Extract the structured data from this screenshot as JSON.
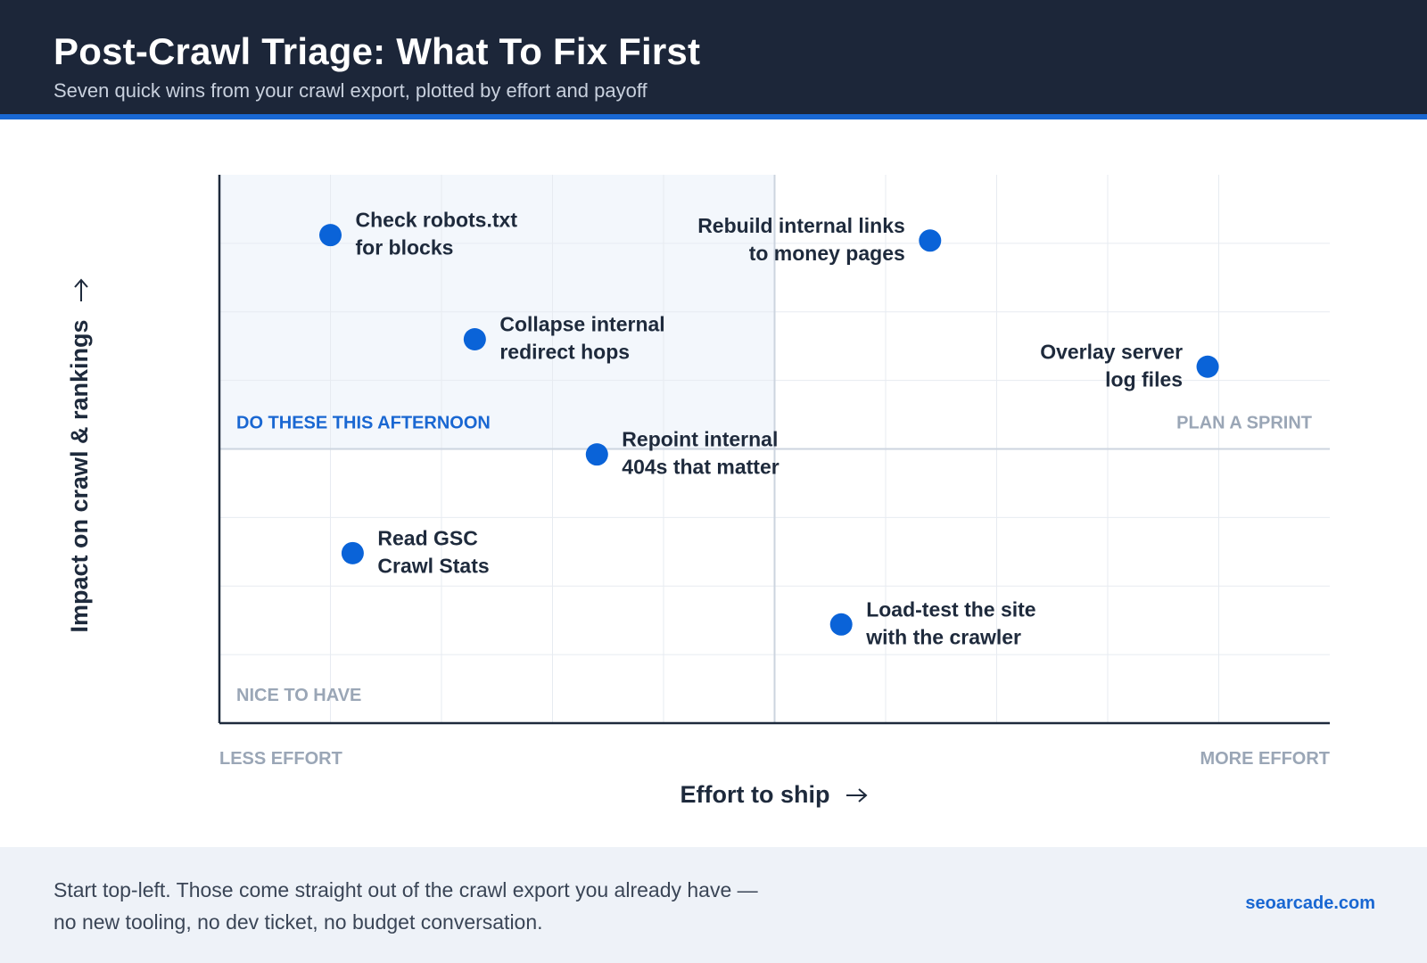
{
  "header": {
    "title": "Post-Crawl Triage: What To Fix First",
    "subtitle": "Seven quick wins from your crawl export, plotted by effort and payoff"
  },
  "colors": {
    "header_bg": "#1c2639",
    "accent": "#1967d2",
    "point": "#0a63d8",
    "quadrant_highlight": "#f3f7fc",
    "muted_label": "#9aa6b6",
    "footer_bg": "#eef2f8"
  },
  "chart_data": {
    "type": "scatter",
    "xlabel": "Effort to ship",
    "ylabel": "Impact on crawl & rankings",
    "xlim": [
      0,
      10
    ],
    "ylim": [
      0,
      10
    ],
    "grid": true,
    "x_axis_end_labels": [
      "LESS EFFORT",
      "MORE EFFORT"
    ],
    "quadrant_labels": {
      "top_left": "DO THESE THIS AFTERNOON",
      "top_right": "PLAN A SPRINT",
      "bottom_left": "NICE TO HAVE"
    },
    "points": [
      {
        "x": 1.0,
        "y": 8.9,
        "label": [
          "Check robots.txt",
          "for blocks"
        ]
      },
      {
        "x": 6.4,
        "y": 8.8,
        "label": [
          "Rebuild internal links",
          "to money pages"
        ]
      },
      {
        "x": 2.3,
        "y": 7.0,
        "label": [
          "Collapse internal",
          "redirect hops"
        ]
      },
      {
        "x": 8.9,
        "y": 6.5,
        "label": [
          "Overlay server",
          "log files"
        ]
      },
      {
        "x": 3.4,
        "y": 4.9,
        "label": [
          "Repoint internal",
          "404s that matter"
        ]
      },
      {
        "x": 1.2,
        "y": 3.1,
        "label": [
          "Read GSC",
          "Crawl Stats"
        ]
      },
      {
        "x": 5.6,
        "y": 1.8,
        "label": [
          "Load-test the site",
          "with the crawler"
        ]
      }
    ]
  },
  "footer": {
    "note_line1": "Start top-left. Those come straight out of the crawl export you already have —",
    "note_line2": "no new tooling, no dev ticket, no budget conversation.",
    "brand": "seoarcade.com"
  }
}
